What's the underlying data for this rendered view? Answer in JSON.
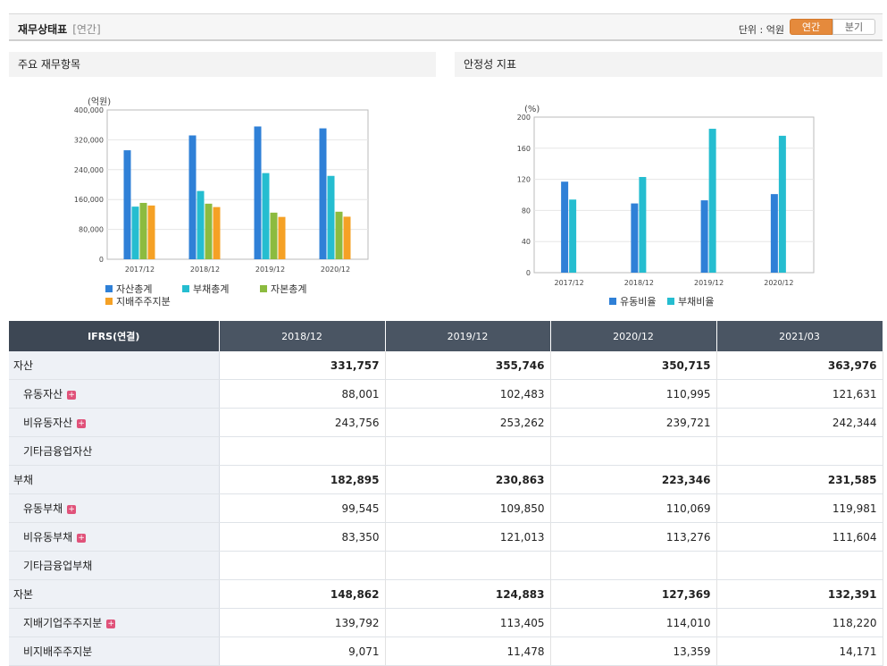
{
  "header": {
    "title": "재무상태표",
    "period_sub": "[연간]",
    "unit_label": "단위 : 억원",
    "toggle": {
      "annual": "연간",
      "quarterly": "분기"
    }
  },
  "left_panel": {
    "title": "주요 재무항목"
  },
  "right_panel": {
    "title": "안정성 지표"
  },
  "colors": {
    "blue": "#2f80d7",
    "cyan": "#25bdd0",
    "green": "#8cbb3f",
    "orange": "#f5a125"
  },
  "chart_data": [
    {
      "type": "bar",
      "ylabel": "(억원)",
      "categories": [
        "2017/12",
        "2018/12",
        "2019/12",
        "2020/12"
      ],
      "ylim": [
        0,
        400000
      ],
      "yticks": [
        "0",
        "80,000",
        "160,000",
        "240,000",
        "320,000",
        "400,000"
      ],
      "grid": true,
      "legend_position": "bottom",
      "series": [
        {
          "name": "자산총계",
          "values": [
            292000,
            331757,
            355746,
            350715
          ]
        },
        {
          "name": "부채총계",
          "values": [
            141000,
            182895,
            230863,
            223346
          ]
        },
        {
          "name": "자본총계",
          "values": [
            151000,
            148862,
            124883,
            127369
          ]
        },
        {
          "name": "지배주주지분",
          "values": [
            144000,
            139792,
            113405,
            114010
          ]
        }
      ]
    },
    {
      "type": "bar",
      "ylabel": "(%)",
      "categories": [
        "2017/12",
        "2018/12",
        "2019/12",
        "2020/12"
      ],
      "ylim": [
        0,
        200
      ],
      "yticks": [
        "0",
        "40",
        "80",
        "120",
        "160",
        "200"
      ],
      "grid": true,
      "legend_position": "bottom",
      "series": [
        {
          "name": "유동비율",
          "values": [
            117,
            89,
            93,
            101
          ]
        },
        {
          "name": "부채비율",
          "values": [
            94,
            123,
            185,
            176
          ]
        }
      ]
    }
  ],
  "table": {
    "header": [
      "IFRS(연결)",
      "2018/12",
      "2019/12",
      "2020/12",
      "2021/03"
    ],
    "rows": [
      {
        "label": "자산",
        "major": true,
        "plus": false,
        "values": [
          "331,757",
          "355,746",
          "350,715",
          "363,976"
        ]
      },
      {
        "label": "유동자산",
        "major": false,
        "plus": true,
        "values": [
          "88,001",
          "102,483",
          "110,995",
          "121,631"
        ]
      },
      {
        "label": "비유동자산",
        "major": false,
        "plus": true,
        "values": [
          "243,756",
          "253,262",
          "239,721",
          "242,344"
        ]
      },
      {
        "label": "기타금융업자산",
        "major": false,
        "plus": false,
        "values": [
          "",
          "",
          "",
          ""
        ]
      },
      {
        "label": "부채",
        "major": true,
        "plus": false,
        "values": [
          "182,895",
          "230,863",
          "223,346",
          "231,585"
        ]
      },
      {
        "label": "유동부채",
        "major": false,
        "plus": true,
        "values": [
          "99,545",
          "109,850",
          "110,069",
          "119,981"
        ]
      },
      {
        "label": "비유동부채",
        "major": false,
        "plus": true,
        "values": [
          "83,350",
          "121,013",
          "113,276",
          "111,604"
        ]
      },
      {
        "label": "기타금융업부채",
        "major": false,
        "plus": false,
        "values": [
          "",
          "",
          "",
          ""
        ]
      },
      {
        "label": "자본",
        "major": true,
        "plus": false,
        "values": [
          "148,862",
          "124,883",
          "127,369",
          "132,391"
        ]
      },
      {
        "label": "지배기업주주지분",
        "major": false,
        "plus": true,
        "values": [
          "139,792",
          "113,405",
          "114,010",
          "118,220"
        ]
      },
      {
        "label": "비지배주주지분",
        "major": false,
        "plus": false,
        "values": [
          "9,071",
          "11,478",
          "13,359",
          "14,171"
        ]
      }
    ]
  }
}
